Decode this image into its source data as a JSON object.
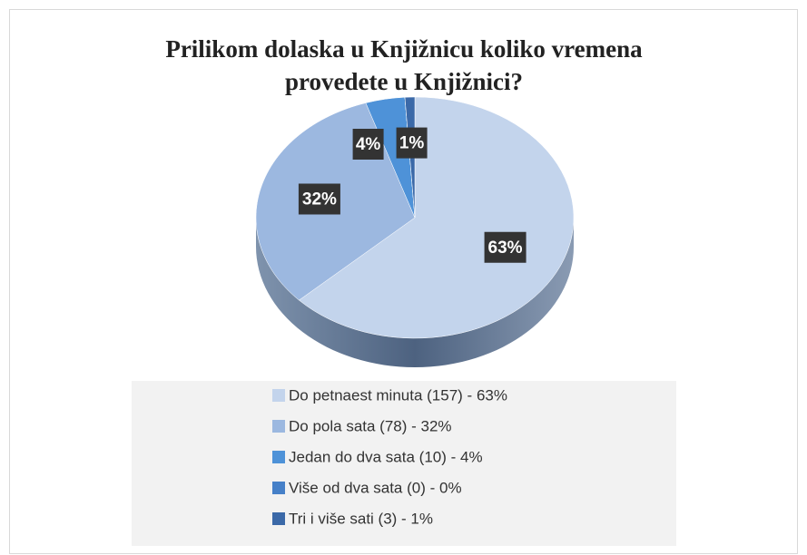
{
  "chart_data": {
    "type": "pie",
    "title": "Prilikom dolaska u Knjižnicu koliko vremena provedete u Knjižnici?",
    "categories": [
      "Do petnaest minuta (157) - 63%",
      "Do pola sata (78) - 32%",
      "Jedan do dva sata (10) - 4%",
      "Više od dva sata (0) - 0%",
      "Tri i više sati (3) - 1%"
    ],
    "values": [
      63,
      32,
      4,
      0,
      1
    ],
    "value_labels": [
      "63%",
      "32%",
      "4%",
      null,
      "1%"
    ],
    "colors": [
      "#c3d4ec",
      "#9cb8e0",
      "#4e92d8",
      "#4680c8",
      "#3b69a8"
    ],
    "legend": "bottom"
  }
}
